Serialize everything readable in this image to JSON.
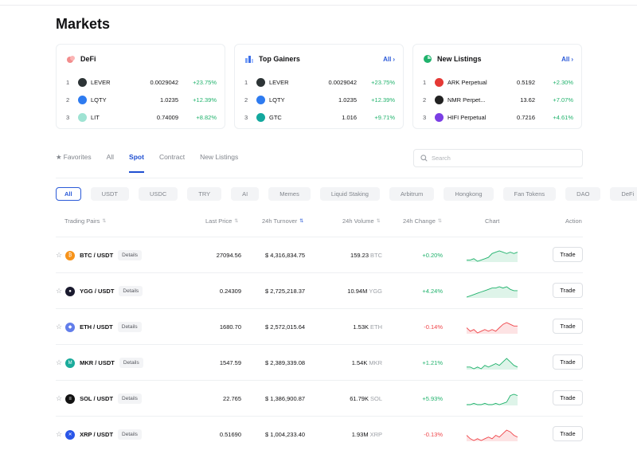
{
  "page": {
    "title": "Markets"
  },
  "cards": [
    {
      "title": "DeFi",
      "show_all": false,
      "all_label": "",
      "rows": [
        {
          "rank": "1",
          "name": "LEVER",
          "price": "0.0029042",
          "change": "+23.75%",
          "coin_color": "#2d3436",
          "positive": true
        },
        {
          "rank": "2",
          "name": "LQTY",
          "price": "1.0235",
          "change": "+12.39%",
          "coin_color": "#2e7bf0",
          "positive": true
        },
        {
          "rank": "3",
          "name": "LIT",
          "price": "0.74009",
          "change": "+8.82%",
          "coin_color": "#9fe3d3",
          "positive": true
        }
      ]
    },
    {
      "title": "Top Gainers",
      "show_all": true,
      "all_label": "All",
      "rows": [
        {
          "rank": "1",
          "name": "LEVER",
          "price": "0.0029042",
          "change": "+23.75%",
          "coin_color": "#2d3436",
          "positive": true
        },
        {
          "rank": "2",
          "name": "LQTY",
          "price": "1.0235",
          "change": "+12.39%",
          "coin_color": "#2e7bf0",
          "positive": true
        },
        {
          "rank": "3",
          "name": "GTC",
          "price": "1.016",
          "change": "+9.71%",
          "coin_color": "#13a89e",
          "positive": true
        }
      ]
    },
    {
      "title": "New Listings",
      "show_all": true,
      "all_label": "All",
      "rows": [
        {
          "rank": "1",
          "name": "ARK Perpetual",
          "price": "0.5192",
          "change": "+2.30%",
          "coin_color": "#e53935",
          "positive": true
        },
        {
          "rank": "2",
          "name": "NMR Perpet...",
          "price": "13.62",
          "change": "+7.07%",
          "coin_color": "#222222",
          "positive": true
        },
        {
          "rank": "3",
          "name": "HIFI Perpetual",
          "price": "0.7216",
          "change": "+4.61%",
          "coin_color": "#7b3fe4",
          "positive": true
        }
      ]
    }
  ],
  "tabs": [
    {
      "label": "Favorites",
      "active": false
    },
    {
      "label": "All",
      "active": false
    },
    {
      "label": "Spot",
      "active": true
    },
    {
      "label": "Contract",
      "active": false
    },
    {
      "label": "New Listings",
      "active": false
    }
  ],
  "search": {
    "placeholder": "Search",
    "value": ""
  },
  "chips": [
    "All",
    "USDT",
    "USDC",
    "TRY",
    "AI",
    "Memes",
    "Liquid Staking",
    "Arbitrum",
    "Hongkong",
    "Fan Tokens",
    "DAO",
    "DeFi"
  ],
  "active_chip": "All",
  "table": {
    "headers": {
      "pair": "Trading Pairs",
      "last_price": "Last Price",
      "turnover": "24h Turnover",
      "volume": "24h Volume",
      "change": "24h Change",
      "chart": "Chart",
      "action": "Action"
    },
    "sorted_column": "turnover",
    "trade_label": "Trade",
    "details_label": "Details",
    "rows": [
      {
        "pair": "BTC / USDT",
        "icon_color": "#f7931a",
        "icon_glyph": "₿",
        "last_price": "27094.56",
        "turnover": "$ 4,316,834.75",
        "volume": "159.23",
        "volume_unit": "BTC",
        "change": "+0.20%",
        "positive": true,
        "spark": [
          4,
          4,
          5,
          3,
          4,
          5,
          6,
          9,
          10,
          11,
          10,
          9,
          10,
          9,
          10
        ]
      },
      {
        "pair": "YGG / USDT",
        "icon_color": "#1a1a2e",
        "icon_glyph": "●",
        "last_price": "0.24309",
        "turnover": "$ 2,725,218.37",
        "volume": "10.94M",
        "volume_unit": "YGG",
        "change": "+4.24%",
        "positive": true,
        "spark": [
          3,
          4,
          5,
          6,
          7,
          8,
          9,
          10,
          10,
          11,
          10,
          11,
          9,
          8,
          8
        ]
      },
      {
        "pair": "ETH / USDT",
        "icon_color": "#627eea",
        "icon_glyph": "◆",
        "last_price": "1680.70",
        "turnover": "$ 2,572,015.64",
        "volume": "1.53K",
        "volume_unit": "ETH",
        "change": "-0.14%",
        "positive": false,
        "spark": [
          8,
          6,
          7,
          5,
          6,
          7,
          6,
          7,
          6,
          8,
          10,
          11,
          10,
          9,
          9
        ]
      },
      {
        "pair": "MKR / USDT",
        "icon_color": "#1aab9b",
        "icon_glyph": "M",
        "last_price": "1547.59",
        "turnover": "$ 2,389,339.08",
        "volume": "1.54K",
        "volume_unit": "MKR",
        "change": "+1.21%",
        "positive": true,
        "spark": [
          5,
          5,
          4,
          5,
          4,
          6,
          5,
          6,
          7,
          6,
          8,
          10,
          8,
          6,
          5
        ]
      },
      {
        "pair": "SOL / USDT",
        "icon_color": "#111111",
        "icon_glyph": "≡",
        "last_price": "22.765",
        "turnover": "$ 1,386,900.87",
        "volume": "61.79K",
        "volume_unit": "SOL",
        "change": "+5.93%",
        "positive": true,
        "spark": [
          3,
          3,
          4,
          3,
          3,
          4,
          3,
          3,
          4,
          3,
          4,
          5,
          10,
          11,
          10
        ]
      },
      {
        "pair": "XRP / USDT",
        "icon_color": "#2a56e8",
        "icon_glyph": "✕",
        "last_price": "0.51690",
        "turnover": "$ 1,004,233.40",
        "volume": "1.93M",
        "volume_unit": "XRP",
        "change": "-0.13%",
        "positive": false,
        "spark": [
          8,
          6,
          5,
          6,
          5,
          6,
          7,
          6,
          8,
          7,
          9,
          11,
          10,
          8,
          7
        ]
      }
    ]
  },
  "colors": {
    "accent": "#1f4fd1",
    "positive": "#20b26c",
    "negative": "#ef454a"
  }
}
